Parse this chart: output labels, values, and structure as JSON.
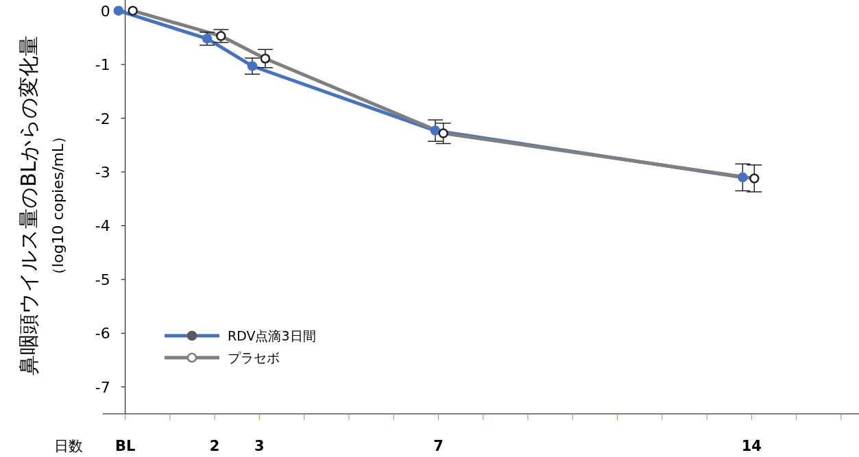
{
  "chart_data": {
    "type": "line",
    "ylabel": "鼻咽頭ウイルス量のBLからの変化量（log10 copies/mL）",
    "xlabel": "日数",
    "xlim": [
      -0.5,
      16.4
    ],
    "ylim": [
      -7.5,
      0.2
    ],
    "xticks": [
      {
        "value": 0,
        "label": "BL"
      },
      {
        "value": 1,
        "label": null
      },
      2,
      3,
      {
        "value": 4,
        "label": null
      },
      {
        "value": 5,
        "label": null
      },
      {
        "value": 6,
        "label": null
      },
      7,
      {
        "value": 8,
        "label": null
      },
      {
        "value": 9,
        "label": null
      },
      {
        "value": 10,
        "label": null
      },
      {
        "value": 11,
        "label": null
      },
      {
        "value": 12,
        "label": null
      },
      {
        "value": 13,
        "label": null
      },
      14,
      {
        "value": 15,
        "label": null
      },
      {
        "value": 16,
        "label": null
      }
    ],
    "yticks": [
      0,
      -1,
      -2,
      -3,
      -4,
      -5,
      -6,
      -7
    ],
    "marker": "circle",
    "legend": "bottom left",
    "grid": false,
    "series": [
      {
        "name": "RDV点滴3日間",
        "color": "#4472c4",
        "x": [
          -0.15,
          1.83,
          2.84,
          6.93,
          13.8
        ],
        "values": [
          0,
          -0.52,
          -1.03,
          -2.23,
          -3.1
        ],
        "errors": [
          null,
          0.12,
          0.15,
          0.2,
          0.25
        ]
      },
      {
        "name": "プラセボ",
        "color": "#7f7f7f",
        "x": [
          0.17,
          2.14,
          3.13,
          7.11,
          14.06
        ],
        "values": [
          0,
          -0.47,
          -0.89,
          -2.28,
          -3.12
        ],
        "errors": [
          null,
          0.12,
          0.17,
          0.19,
          0.25
        ]
      }
    ]
  }
}
